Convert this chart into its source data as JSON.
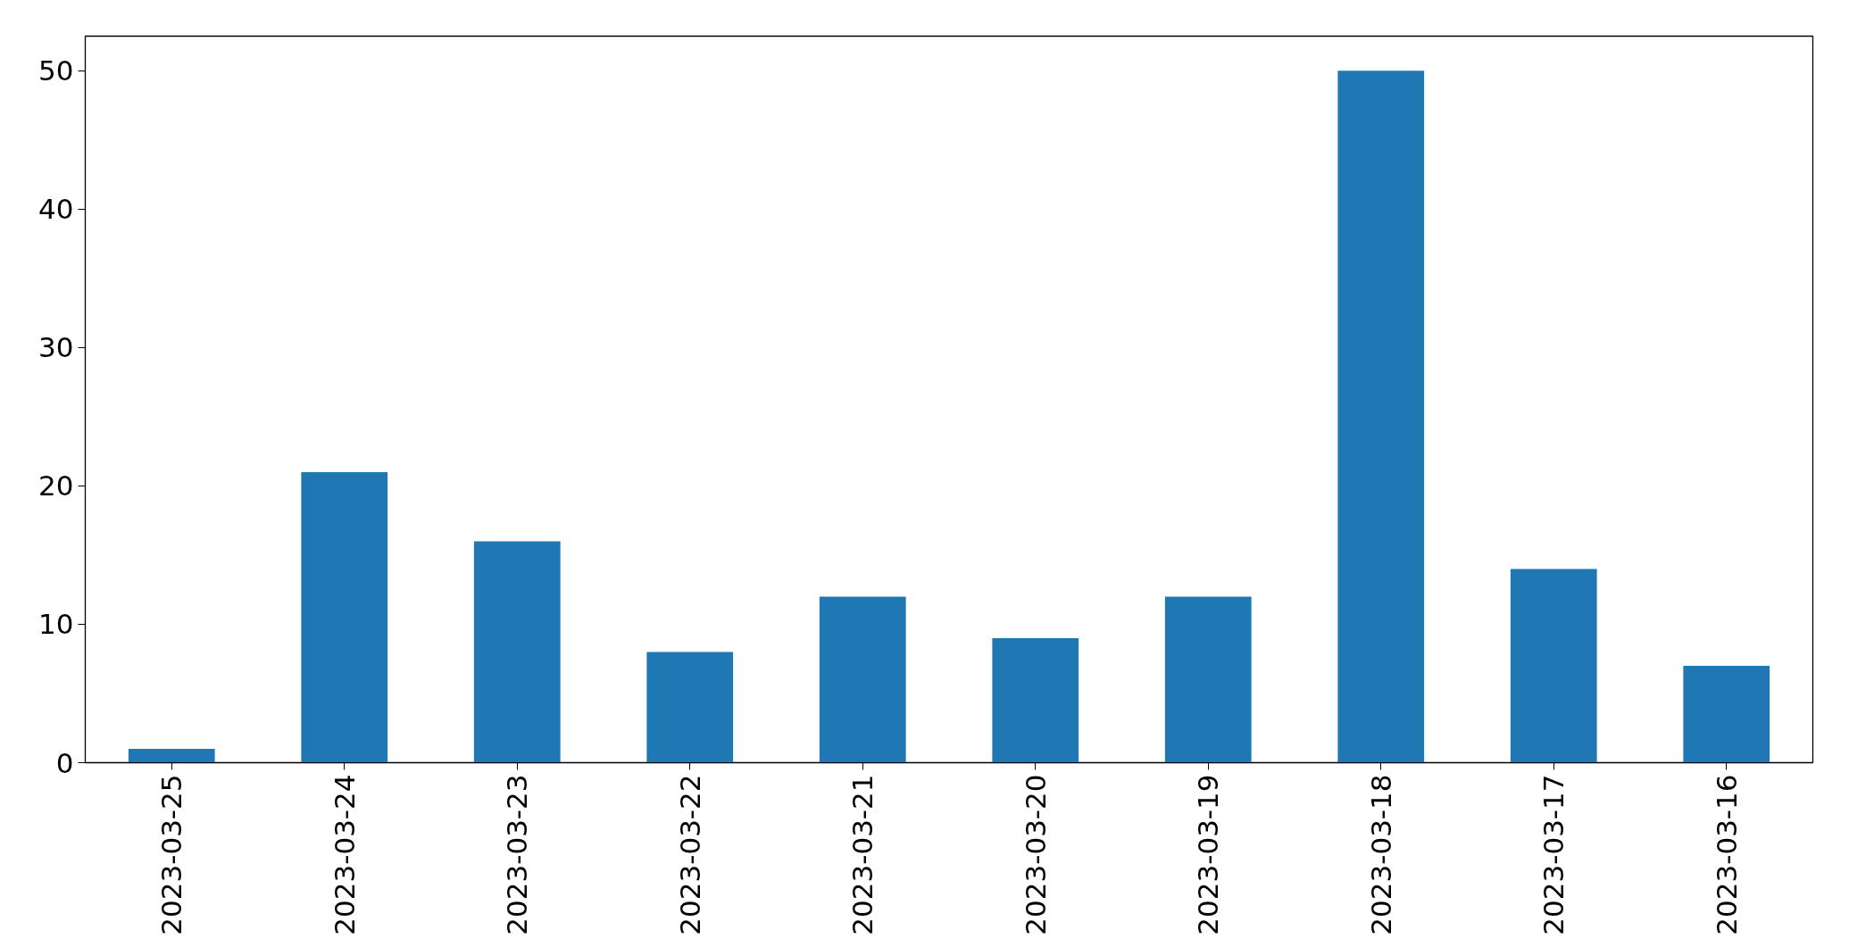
{
  "chart_data": {
    "type": "bar",
    "categories": [
      "2023-03-25",
      "2023-03-24",
      "2023-03-23",
      "2023-03-22",
      "2023-03-21",
      "2023-03-20",
      "2023-03-19",
      "2023-03-18",
      "2023-03-17",
      "2023-03-16"
    ],
    "values": [
      1,
      21,
      16,
      8,
      12,
      9,
      12,
      50,
      14,
      7
    ],
    "color": "#1f77b4",
    "ylim": [
      0,
      52.5
    ],
    "yticks": [
      0,
      10,
      20,
      30,
      40,
      50
    ],
    "grid": false
  }
}
